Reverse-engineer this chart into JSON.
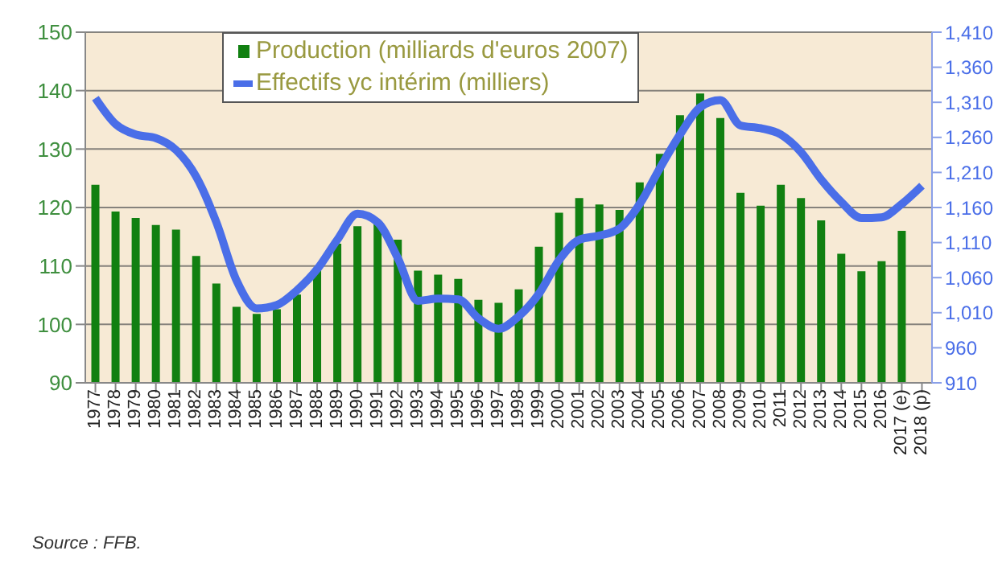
{
  "chart_data": {
    "type": "bar",
    "categories": [
      "1977",
      "1978",
      "1979",
      "1980",
      "1981",
      "1982",
      "1983",
      "1984",
      "1985",
      "1986",
      "1987",
      "1988",
      "1989",
      "1990",
      "1991",
      "1992",
      "1993",
      "1994",
      "1995",
      "1996",
      "1997",
      "1998",
      "1999",
      "2000",
      "2001",
      "2002",
      "2003",
      "2004",
      "2005",
      "2006",
      "2007",
      "2008",
      "2009",
      "2010",
      "2011",
      "2012",
      "2013",
      "2014",
      "2015",
      "2016",
      "2017 (e)",
      "2018 (p)"
    ],
    "series": [
      {
        "name": "Production (milliards d'euros 2007)",
        "color": "#118011",
        "values": [
          123.9,
          119.3,
          118.2,
          117,
          116.2,
          111.7,
          107,
          103,
          101.8,
          102.6,
          105.1,
          109.5,
          113.8,
          116.8,
          117.2,
          114.5,
          109.2,
          108.5,
          107.8,
          104.2,
          103.7,
          106,
          113.3,
          119.1,
          121.6,
          120.5,
          119.6,
          124.3,
          129.2,
          135.8,
          139.5,
          135.3,
          122.5,
          120.3,
          123.9,
          121.6,
          117.8,
          112.1,
          109.1,
          110.8,
          116,
          null
        ]
      },
      {
        "name": "Effectifs yc intérim (milliers)",
        "type": "line",
        "axis": "y2",
        "color": "#4a6ee8",
        "values": [
          1316,
          1279,
          1264,
          1259,
          1242,
          1204,
          1139,
          1056,
          1016,
          1021,
          1042,
          1072,
          1114,
          1151,
          1139,
          1088,
          1027,
          1030,
          1029,
          1002,
          987,
          1005,
          1037,
          1085,
          1114,
          1120,
          1130,
          1165,
          1216,
          1264,
          1303,
          1313,
          1277,
          1273,
          1264,
          1239,
          1200,
          1168,
          1145,
          1146,
          1165,
          1191
        ]
      }
    ],
    "ylim": [
      90,
      150
    ],
    "yticks": [
      90,
      100,
      110,
      120,
      130,
      140,
      150
    ],
    "y2lim": [
      910,
      1410
    ],
    "y2ticks": [
      {
        "value": 910,
        "label": "910"
      },
      {
        "value": 960,
        "label": "960"
      },
      {
        "value": 1010,
        "label": "1,010"
      },
      {
        "value": 1060,
        "label": "1,060"
      },
      {
        "value": 1110,
        "label": "1,110"
      },
      {
        "value": 1160,
        "label": "1,160"
      },
      {
        "value": 1210,
        "label": "1,210"
      },
      {
        "value": 1260,
        "label": "1,260"
      },
      {
        "value": 1310,
        "label": "1,310"
      },
      {
        "value": 1360,
        "label": "1,360"
      },
      {
        "value": 1410,
        "label": "1,410"
      }
    ],
    "grid": "y",
    "legend": "top",
    "marker": "none",
    "annotations": [
      "Source : FFB."
    ]
  }
}
